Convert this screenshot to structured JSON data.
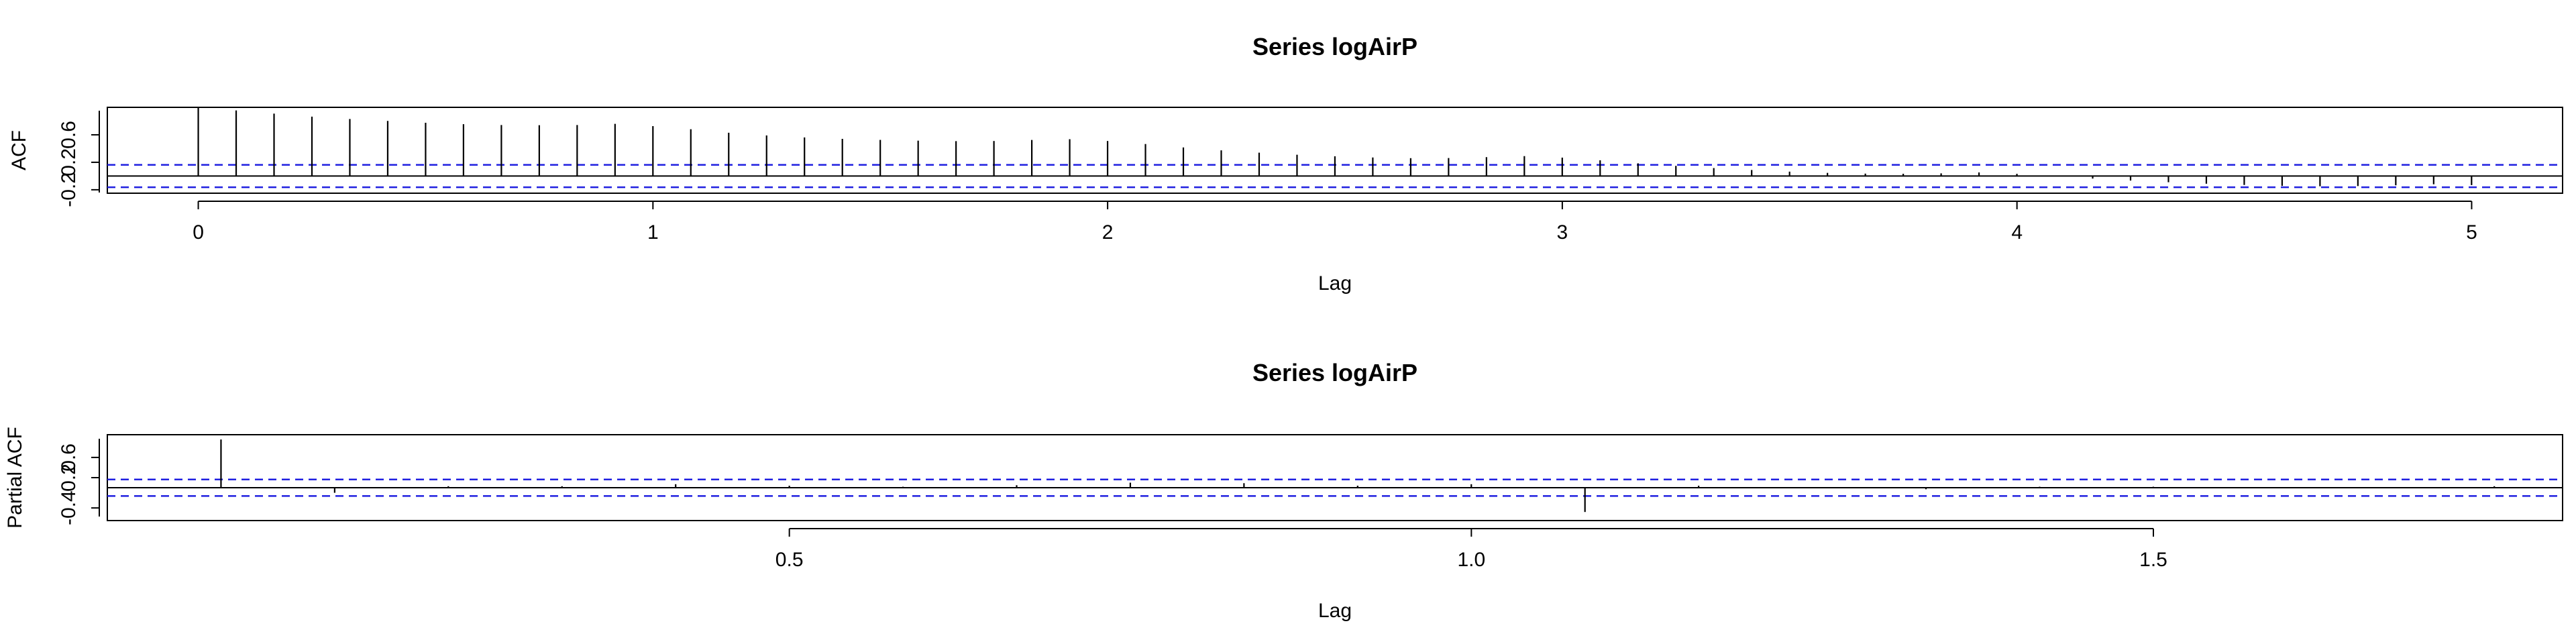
{
  "chart_data": [
    {
      "type": "bar",
      "title": "Series  logAirP",
      "xlabel": "Lag",
      "ylabel": "ACF",
      "xlim": [
        -0.2,
        5.2
      ],
      "ylim": [
        -0.25,
        1.0
      ],
      "x_ticks": [
        0,
        1,
        2,
        3,
        4,
        5
      ],
      "x_tick_labels": [
        "0",
        "1",
        "2",
        "3",
        "4",
        "5"
      ],
      "y_ticks": [
        -0.2,
        0.2,
        0.6
      ],
      "y_tick_labels": [
        "-0.2",
        "0.2",
        "0.6"
      ],
      "ci": 0.163,
      "lag_step": 0.08333,
      "values": [
        1.0,
        0.955,
        0.908,
        0.865,
        0.83,
        0.802,
        0.776,
        0.755,
        0.743,
        0.74,
        0.742,
        0.76,
        0.726,
        0.681,
        0.63,
        0.591,
        0.562,
        0.541,
        0.526,
        0.515,
        0.508,
        0.51,
        0.525,
        0.536,
        0.51,
        0.466,
        0.416,
        0.374,
        0.34,
        0.31,
        0.287,
        0.27,
        0.26,
        0.262,
        0.275,
        0.29,
        0.268,
        0.229,
        0.185,
        0.148,
        0.116,
        0.088,
        0.064,
        0.046,
        0.035,
        0.033,
        0.039,
        0.052,
        0.032,
        -0.002,
        -0.037,
        -0.066,
        -0.09,
        -0.112,
        -0.13,
        -0.143,
        -0.149,
        -0.146,
        -0.135,
        -0.12,
        -0.132
      ]
    },
    {
      "type": "bar",
      "title": "Series  logAirP",
      "xlabel": "Lag",
      "ylabel": "Partial ACF",
      "xlim": [
        0.0,
        1.8
      ],
      "ylim": [
        -0.65,
        1.05
      ],
      "x_ticks": [
        0.5,
        1.0,
        1.5
      ],
      "x_tick_labels": [
        "0.5",
        "1.0",
        "1.5"
      ],
      "y_ticks": [
        -0.4,
        0.2,
        0.6
      ],
      "y_tick_labels": [
        "-0.4",
        "0.2",
        "0.6"
      ],
      "ci": 0.163,
      "lag_step": 0.08333,
      "values": [
        0.955,
        -0.1,
        0.03,
        0.03,
        0.07,
        0.04,
        0.02,
        0.05,
        0.1,
        0.09,
        0.04,
        0.07,
        -0.48,
        0.04,
        0.01,
        -0.03,
        0.02,
        0.02,
        0.01,
        0.0,
        0.03,
        0.02
      ]
    }
  ]
}
